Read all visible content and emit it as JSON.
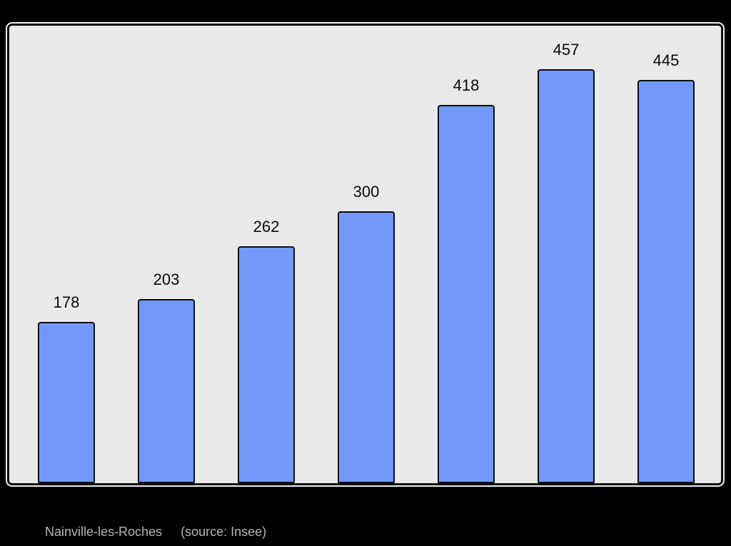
{
  "page": {
    "background_color": "#000000"
  },
  "caption": {
    "name": "Nainville-les-Roches",
    "source": "(source: Insee)",
    "text_color": "#b5b5b5"
  },
  "chart_data": {
    "type": "bar",
    "values": [
      178,
      203,
      262,
      300,
      418,
      457,
      445
    ],
    "value_labels": [
      "178",
      "203",
      "262",
      "300",
      "418",
      "457",
      "445"
    ],
    "title": "",
    "xlabel": "",
    "ylabel": "",
    "ylim": [
      0,
      505
    ],
    "grid": false,
    "legend": false,
    "axis_tick_labels_visible": false,
    "bar_fill_color": "#7299f8",
    "bar_border_color": "#0d0d0d",
    "plot_background_color": "#e9e9e9",
    "plot_border_color": "#0b0b0b",
    "value_label_color": "#0a0a0a"
  }
}
